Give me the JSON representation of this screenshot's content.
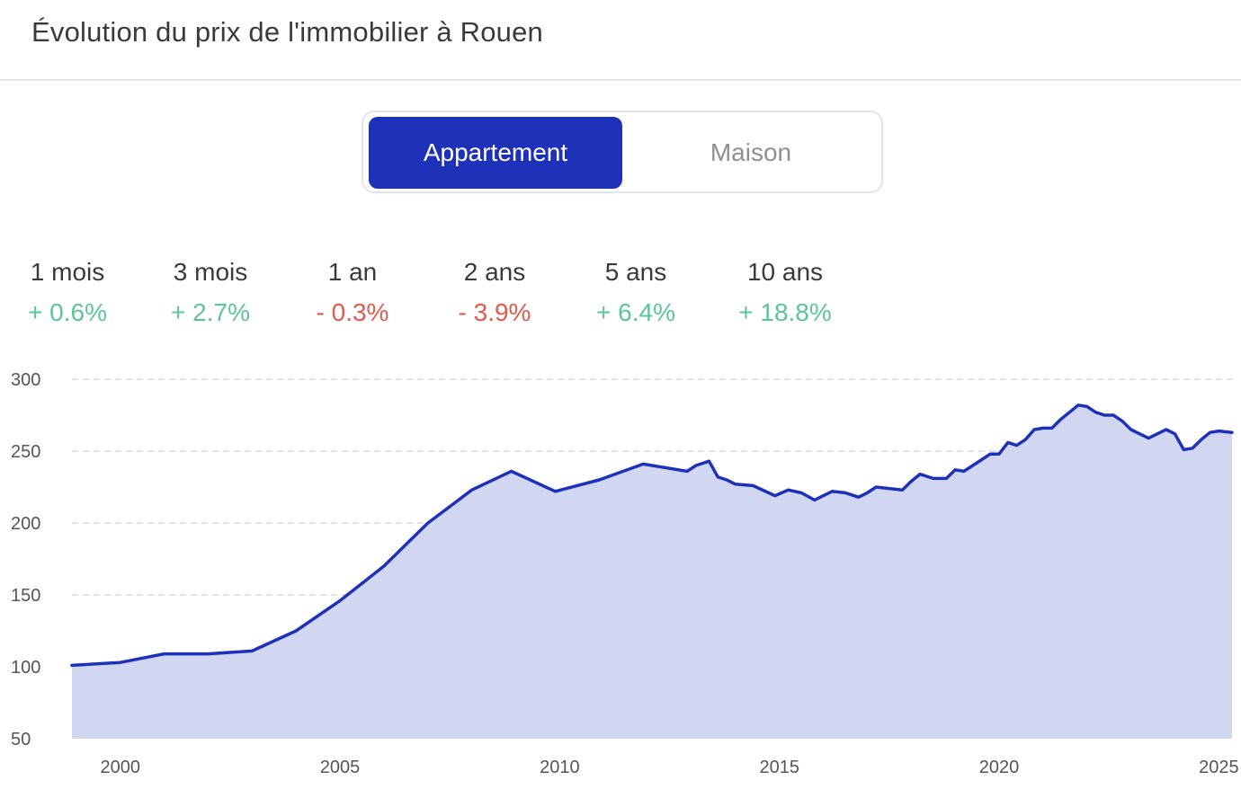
{
  "title": "Évolution du prix de l'immobilier à Rouen",
  "toggle": {
    "active": "Appartement",
    "inactive": "Maison"
  },
  "stats": [
    {
      "label": "1 mois",
      "value": "+ 0.6%",
      "trend": "pos"
    },
    {
      "label": "3 mois",
      "value": "+ 2.7%",
      "trend": "pos"
    },
    {
      "label": "1 an",
      "value": "- 0.3%",
      "trend": "neg"
    },
    {
      "label": "2 ans",
      "value": "- 3.9%",
      "trend": "neg"
    },
    {
      "label": "5 ans",
      "value": "+ 6.4%",
      "trend": "pos"
    },
    {
      "label": "10 ans",
      "value": "+ 18.8%",
      "trend": "pos"
    }
  ],
  "colors": {
    "line": "#1d32b8",
    "fill": "#d2d7f1",
    "grid": "#d9d9d9",
    "positive": "#5dc49a",
    "negative": "#e05a4e",
    "toggle_active": "#1d32b8"
  },
  "chart_data": {
    "type": "area",
    "title": "",
    "xlabel": "",
    "ylabel": "",
    "xlim": [
      1998.9,
      2025.3
    ],
    "ylim": [
      50,
      300
    ],
    "yticks": [
      300,
      250,
      200,
      150,
      100,
      50
    ],
    "xticks": [
      2000,
      2005,
      2010,
      2015,
      2020,
      2025
    ],
    "grid": true,
    "series": [
      {
        "x": [
          1998.9,
          2000,
          2001,
          2002,
          2003,
          2004,
          2005,
          2006,
          2007,
          2008,
          2008.9,
          2009.9,
          2010.9,
          2011.9,
          2012.9,
          2013.1,
          2013.4,
          2013.6,
          2013.8,
          2014.0,
          2014.4,
          2014.9,
          2015.2,
          2015.5,
          2015.8,
          2016.0,
          2016.2,
          2016.5,
          2016.8,
          2017.0,
          2017.2,
          2017.5,
          2017.8,
          2018.0,
          2018.2,
          2018.5,
          2018.8,
          2019.0,
          2019.2,
          2019.4,
          2019.6,
          2019.8,
          2020.0,
          2020.2,
          2020.4,
          2020.6,
          2020.8,
          2021.0,
          2021.2,
          2021.4,
          2021.6,
          2021.8,
          2022.0,
          2022.2,
          2022.4,
          2022.6,
          2022.8,
          2023.0,
          2023.2,
          2023.4,
          2023.6,
          2023.8,
          2024.0,
          2024.2,
          2024.4,
          2024.6,
          2024.8,
          2025.0,
          2025.3
        ],
        "y": [
          101,
          103,
          109,
          109,
          111,
          125,
          146,
          170,
          200,
          223,
          236,
          222,
          230,
          241,
          236,
          240,
          243,
          232,
          230,
          227,
          226,
          219,
          223,
          221,
          216,
          219,
          222,
          221,
          218,
          221,
          225,
          224,
          223,
          229,
          234,
          231,
          231,
          237,
          236,
          240,
          244,
          248,
          248,
          256,
          254,
          258,
          265,
          266,
          266,
          272,
          277,
          282,
          281,
          277,
          275,
          275,
          271,
          265,
          262,
          259,
          262,
          265,
          262,
          251,
          252,
          258,
          263,
          264,
          263
        ]
      }
    ]
  }
}
